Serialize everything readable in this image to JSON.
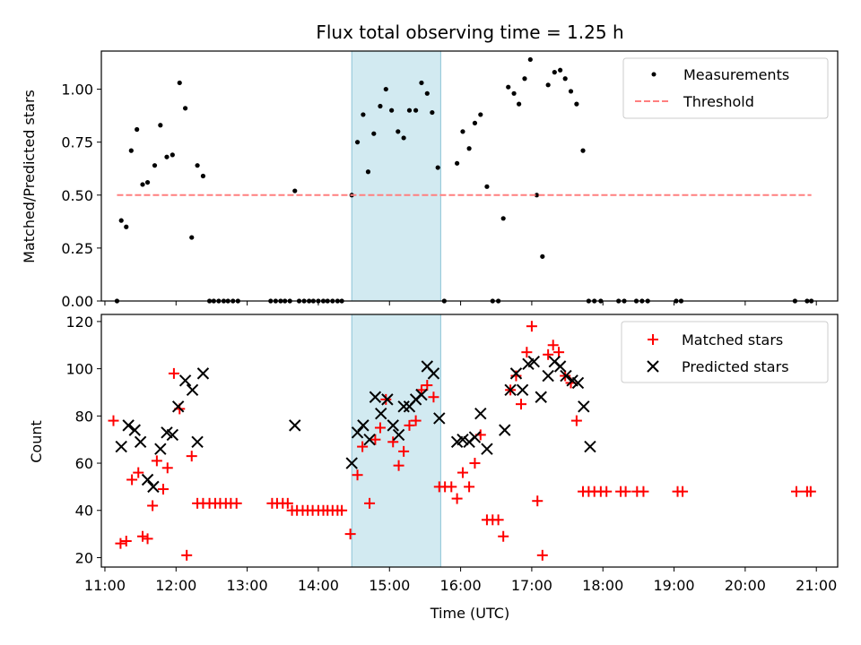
{
  "chart_data": {
    "title": "Flux total observing time = 1.25 h",
    "xlabel": "Time (UTC)",
    "x_ticks": [
      "11:00",
      "12:00",
      "13:00",
      "14:00",
      "15:00",
      "16:00",
      "17:00",
      "18:00",
      "19:00",
      "20:00",
      "21:00"
    ],
    "xlim_hours": [
      10.95,
      21.3
    ],
    "highlight_span_hours": [
      14.47,
      15.72
    ],
    "highlight_color": "#add8e6",
    "panels": [
      {
        "type": "scatter",
        "ylabel": "Matched/Predicted stars",
        "ylim": [
          0,
          1.18
        ],
        "y_ticks": [
          "0.00",
          "0.25",
          "0.50",
          "0.75",
          "1.00"
        ],
        "y_tick_values": [
          0,
          0.25,
          0.5,
          0.75,
          1.0
        ],
        "legend": {
          "position": "upper right",
          "entries": [
            "Measurements",
            "Threshold"
          ]
        },
        "series": [
          {
            "name": "Measurements",
            "marker": "dot",
            "color": "#000000",
            "x": [
              11.17,
              11.23,
              11.3,
              11.37,
              11.45,
              11.53,
              11.6,
              11.7,
              11.78,
              11.87,
              11.95,
              12.05,
              12.13,
              12.22,
              12.3,
              12.38,
              12.47,
              12.53,
              12.6,
              12.67,
              12.73,
              12.8,
              12.87,
              13.33,
              13.4,
              13.47,
              13.53,
              13.6,
              13.67,
              13.73,
              13.8,
              13.87,
              13.93,
              14.0,
              14.07,
              14.13,
              14.2,
              14.27,
              14.33,
              14.47,
              14.55,
              14.63,
              14.7,
              14.78,
              14.87,
              14.95,
              15.03,
              15.12,
              15.2,
              15.28,
              15.37,
              15.45,
              15.53,
              15.6,
              15.68,
              15.77,
              15.95,
              16.03,
              16.12,
              16.2,
              16.28,
              16.37,
              16.45,
              16.53,
              16.6,
              16.67,
              16.75,
              16.82,
              16.9,
              16.98,
              17.07,
              17.15,
              17.23,
              17.32,
              17.4,
              17.47,
              17.55,
              17.63,
              17.72,
              17.8,
              17.88,
              17.97,
              18.22,
              18.3,
              18.47,
              18.55,
              18.63,
              19.03,
              19.1,
              20.7,
              20.87,
              20.93
            ],
            "y": [
              0,
              0.38,
              0.35,
              0.71,
              0.81,
              0.55,
              0.56,
              0.64,
              0.83,
              0.68,
              0.69,
              1.03,
              0.91,
              0.3,
              0.64,
              0.59,
              0,
              0,
              0,
              0,
              0,
              0,
              0,
              0,
              0,
              0,
              0,
              0,
              0.52,
              0,
              0,
              0,
              0,
              0,
              0,
              0,
              0,
              0,
              0,
              0.5,
              0.75,
              0.88,
              0.61,
              0.79,
              0.92,
              1.0,
              0.9,
              0.8,
              0.77,
              0.9,
              0.9,
              1.03,
              0.98,
              0.89,
              0.63,
              0,
              0.65,
              0.8,
              0.72,
              0.84,
              0.88,
              0.54,
              0,
              0,
              0.39,
              1.01,
              0.98,
              0.93,
              1.05,
              1.14,
              0.5,
              0.21,
              1.02,
              1.08,
              1.09,
              1.05,
              0.99,
              0.93,
              0.71,
              0,
              0,
              0,
              0,
              0,
              0,
              0,
              0,
              0,
              0,
              0,
              0,
              0
            ]
          },
          {
            "name": "Threshold",
            "type": "line",
            "style": "dashed",
            "color": "#ff7f7f",
            "x": [
              11.17,
              20.93
            ],
            "y": [
              0.5,
              0.5
            ]
          }
        ]
      },
      {
        "type": "scatter",
        "ylabel": "Count",
        "ylim": [
          16,
          123
        ],
        "y_ticks": [
          "20",
          "40",
          "60",
          "80",
          "100",
          "120"
        ],
        "y_tick_values": [
          20,
          40,
          60,
          80,
          100,
          120
        ],
        "legend": {
          "position": "upper right",
          "entries": [
            "Matched stars",
            "Predicted stars"
          ]
        },
        "series": [
          {
            "name": "Matched stars",
            "marker": "plus",
            "color": "#ff0000",
            "x": [
              11.12,
              11.22,
              11.3,
              11.38,
              11.47,
              11.53,
              11.6,
              11.67,
              11.73,
              11.82,
              11.88,
              11.97,
              12.05,
              12.15,
              12.22,
              12.3,
              12.38,
              12.47,
              12.55,
              12.62,
              12.7,
              12.77,
              12.85,
              13.35,
              13.42,
              13.5,
              13.57,
              13.63,
              13.7,
              13.78,
              13.85,
              13.92,
              14.0,
              14.07,
              14.13,
              14.2,
              14.27,
              14.33,
              14.45,
              14.55,
              14.62,
              14.72,
              14.8,
              14.87,
              14.95,
              15.05,
              15.13,
              15.2,
              15.28,
              15.37,
              15.45,
              15.53,
              15.62,
              15.7,
              15.78,
              15.87,
              15.95,
              16.03,
              16.12,
              16.2,
              16.28,
              16.37,
              16.45,
              16.53,
              16.6,
              16.7,
              16.78,
              16.85,
              16.93,
              17.0,
              17.08,
              17.15,
              17.23,
              17.3,
              17.38,
              17.47,
              17.55,
              17.63,
              17.72,
              17.8,
              17.88,
              17.97,
              18.05,
              18.25,
              18.32,
              18.48,
              18.57,
              19.05,
              19.12,
              20.72,
              20.87,
              20.92
            ],
            "y": [
              78,
              26,
              27,
              53,
              56,
              29,
              28,
              42,
              61,
              49,
              58,
              98,
              83,
              21,
              63,
              43,
              43,
              43,
              43,
              43,
              43,
              43,
              43,
              43,
              43,
              43,
              43,
              40,
              40,
              40,
              40,
              40,
              40,
              40,
              40,
              40,
              40,
              40,
              30,
              55,
              67,
              43,
              70,
              75,
              87,
              69,
              59,
              65,
              76,
              78,
              91,
              93,
              88,
              50,
              50,
              50,
              45,
              56,
              50,
              60,
              72,
              36,
              36,
              36,
              29,
              91,
              97,
              85,
              107,
              118,
              44,
              21,
              106,
              110,
              107,
              97,
              94,
              78,
              48,
              48,
              48,
              48,
              48,
              48,
              48,
              48,
              48,
              48,
              48,
              48,
              48,
              48
            ],
            "note": ""
          },
          {
            "name": "Predicted stars",
            "marker": "x",
            "color": "#000000",
            "x": [
              11.23,
              11.33,
              11.42,
              11.5,
              11.6,
              11.68,
              11.78,
              11.87,
              11.95,
              12.03,
              12.13,
              12.23,
              12.3,
              12.38,
              13.67,
              14.47,
              14.55,
              14.63,
              14.72,
              14.8,
              14.88,
              14.97,
              15.05,
              15.13,
              15.2,
              15.28,
              15.37,
              15.45,
              15.53,
              15.62,
              15.7,
              15.95,
              16.03,
              16.12,
              16.2,
              16.28,
              16.37,
              16.62,
              16.7,
              16.78,
              16.87,
              16.95,
              17.03,
              17.13,
              17.23,
              17.32,
              17.4,
              17.48,
              17.57,
              17.65,
              17.73,
              17.82
            ],
            "y": [
              67,
              76,
              74,
              69,
              53,
              50,
              66,
              73,
              72,
              84,
              95,
              91,
              69,
              98,
              76,
              60,
              73,
              76,
              70,
              88,
              81,
              87,
              76,
              72,
              84,
              84,
              87,
              89,
              101,
              98,
              79,
              69,
              70,
              69,
              71,
              81,
              66,
              74,
              91,
              98,
              91,
              102,
              103,
              88,
              97,
              103,
              101,
              97,
              95,
              94,
              84,
              67
            ]
          }
        ]
      }
    ]
  }
}
